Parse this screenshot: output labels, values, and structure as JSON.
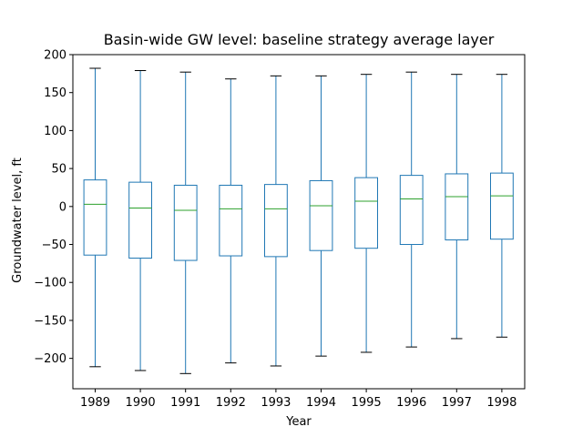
{
  "chart_data": {
    "type": "box",
    "title": "Basin-wide GW level: baseline strategy average layer",
    "xlabel": "Year",
    "ylabel": "Groundwater level, ft",
    "ylim": [
      -240,
      200
    ],
    "yticks": [
      200,
      150,
      100,
      50,
      0,
      -50,
      -100,
      -150,
      -200
    ],
    "ytick_labels": [
      "200",
      "150",
      "100",
      "50",
      "0",
      "−50",
      "−100",
      "−150",
      "−200"
    ],
    "grid": false,
    "categories": [
      "1989",
      "1990",
      "1991",
      "1992",
      "1993",
      "1994",
      "1995",
      "1996",
      "1997",
      "1998"
    ],
    "boxes": [
      {
        "category": "1989",
        "whisker_low": -211,
        "q1": -64,
        "median": 3,
        "q3": 35,
        "whisker_high": 182
      },
      {
        "category": "1990",
        "whisker_low": -216,
        "q1": -68,
        "median": -2,
        "q3": 32,
        "whisker_high": 179
      },
      {
        "category": "1991",
        "whisker_low": -220,
        "q1": -71,
        "median": -5,
        "q3": 28,
        "whisker_high": 177
      },
      {
        "category": "1992",
        "whisker_low": -206,
        "q1": -65,
        "median": -3,
        "q3": 28,
        "whisker_high": 168
      },
      {
        "category": "1993",
        "whisker_low": -210,
        "q1": -66,
        "median": -3,
        "q3": 29,
        "whisker_high": 172
      },
      {
        "category": "1994",
        "whisker_low": -197,
        "q1": -58,
        "median": 1,
        "q3": 34,
        "whisker_high": 172
      },
      {
        "category": "1995",
        "whisker_low": -192,
        "q1": -55,
        "median": 7,
        "q3": 38,
        "whisker_high": 174
      },
      {
        "category": "1996",
        "whisker_low": -185,
        "q1": -50,
        "median": 10,
        "q3": 41,
        "whisker_high": 177
      },
      {
        "category": "1997",
        "whisker_low": -174,
        "q1": -44,
        "median": 13,
        "q3": 43,
        "whisker_high": 174
      },
      {
        "category": "1998",
        "whisker_low": -172,
        "q1": -43,
        "median": 14,
        "q3": 44,
        "whisker_high": 174
      }
    ],
    "colors": {
      "box": "#1f77b4",
      "median": "#2ca02c",
      "cap": "#000000",
      "axes": "#000000"
    }
  }
}
